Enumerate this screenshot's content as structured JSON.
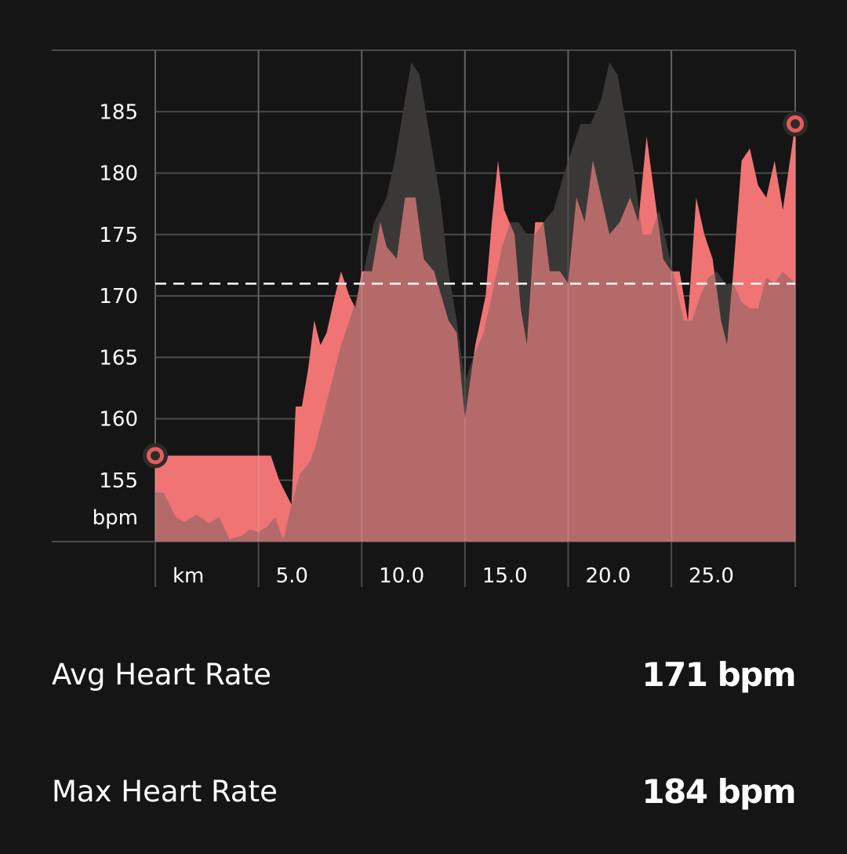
{
  "chart_data": {
    "type": "area",
    "x_unit_label": "km",
    "y_unit_label": "bpm",
    "x_ticks": [
      0,
      5,
      10,
      15,
      20,
      25,
      31
    ],
    "x_tick_labels": [
      "km",
      "5.0",
      "10.0",
      "15.0",
      "20.0",
      "25.0",
      ""
    ],
    "y_ticks": [
      155,
      160,
      165,
      170,
      175,
      180,
      185
    ],
    "y_tick_labels": [
      "155",
      "160",
      "165",
      "170",
      "175",
      "180",
      "185"
    ],
    "xlim": [
      0,
      31
    ],
    "ylim": [
      150,
      190
    ],
    "grid": true,
    "average_line": 171,
    "colors": {
      "heart_rate": "#f07474",
      "comparison": "#3a3836",
      "overlap": "#b56a6a",
      "grid": "#4a4a4a",
      "avg_line": "#ffffff",
      "marker_outer": "#2e2a2a",
      "marker_ring": "#e55b5b"
    },
    "series": [
      {
        "key": "heart_rate",
        "x": [
          0,
          5.6,
          6.0,
          6.6,
          6.8,
          7.1,
          7.4,
          7.7,
          8.0,
          8.3,
          8.7,
          9.0,
          9.4,
          9.7,
          10.0,
          10.5,
          10.9,
          11.2,
          11.7,
          12.1,
          12.6,
          13.0,
          13.5,
          14.2,
          14.6,
          15.0,
          15.5,
          16.0,
          16.3,
          16.6,
          16.9,
          17.4,
          17.7,
          18.0,
          18.4,
          18.8,
          19.1,
          19.6,
          20.0,
          20.4,
          20.8,
          21.2,
          21.6,
          22.0,
          22.5,
          23.0,
          23.4,
          23.8,
          24.2,
          24.6,
          25.0,
          25.4,
          25.8,
          26.2,
          26.6,
          27.0,
          27.4,
          27.7,
          28.0,
          28.4,
          28.8,
          29.2,
          29.6,
          30.0,
          30.4,
          31.0
        ],
        "y": [
          157,
          157,
          155,
          153,
          161,
          161,
          164,
          168,
          166,
          167,
          170,
          172,
          170,
          169,
          172,
          172,
          176,
          174,
          173,
          178,
          178,
          173,
          172,
          168,
          167,
          160,
          166,
          170,
          176,
          181,
          177,
          175,
          169,
          166,
          176,
          176,
          172,
          172,
          171,
          178,
          176,
          181,
          178,
          175,
          176,
          178,
          176,
          183,
          178,
          173,
          172,
          172,
          168,
          178,
          175,
          173,
          168,
          166,
          172,
          181,
          182,
          179,
          178,
          181,
          177,
          184
        ]
      },
      {
        "key": "comparison",
        "x": [
          0,
          0.4,
          1.0,
          1.4,
          2.0,
          2.6,
          3.1,
          3.6,
          4.2,
          4.6,
          5.0,
          5.4,
          5.8,
          6.2,
          6.6,
          7.0,
          7.5,
          7.8,
          8.4,
          9.0,
          9.6,
          10.1,
          10.6,
          11.2,
          11.6,
          12.0,
          12.4,
          12.8,
          13.3,
          13.8,
          14.2,
          14.6,
          15.0,
          15.4,
          15.9,
          16.3,
          16.8,
          17.2,
          17.6,
          18.0,
          18.4,
          18.8,
          19.3,
          19.8,
          20.2,
          20.6,
          21.1,
          21.6,
          22.0,
          22.4,
          22.8,
          23.2,
          23.6,
          24.0,
          24.4,
          24.8,
          25.2,
          25.6,
          26.0,
          26.4,
          26.8,
          27.2,
          27.6,
          28.0,
          28.4,
          28.8,
          29.2,
          29.6,
          30.0,
          30.4,
          31.0
        ],
        "y": [
          154,
          154,
          152,
          151.6,
          152.2,
          151.5,
          152,
          150.2,
          150.5,
          151,
          150.8,
          151.2,
          152,
          150.2,
          153,
          155.5,
          156.5,
          158,
          162,
          166,
          169,
          172,
          176,
          178,
          181,
          185,
          189,
          188,
          183,
          178,
          172,
          168,
          163,
          165,
          167,
          170,
          174,
          176,
          176,
          175,
          175,
          176,
          177,
          180,
          182,
          184,
          184,
          186,
          189,
          188,
          184,
          180,
          175,
          175,
          177,
          174,
          171,
          168,
          168,
          170,
          171.5,
          172,
          171,
          171,
          169.5,
          169,
          169,
          171.5,
          171,
          172,
          171
        ]
      }
    ],
    "start_point": {
      "x": 0,
      "y": 157
    },
    "end_point": {
      "x": 31,
      "y": 184
    }
  },
  "stats": {
    "avg_label": "Avg Heart Rate",
    "avg_value": "171 bpm",
    "max_label": "Max Heart Rate",
    "max_value": "184 bpm"
  }
}
